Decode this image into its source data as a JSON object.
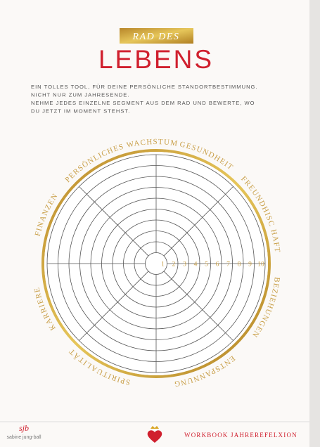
{
  "header": {
    "badge": "RAD DES",
    "title": "LEBENS"
  },
  "intro": [
    "EIN TOLLES TOOL, FÜR DEINE PERSÖNLICHE STANDORTBESTIMMUNG.",
    "NICHT NUR ZUM JAHRESENDE.",
    "NEHME JEDES EINZELNE SEGMENT AUS DEM RAD UND BEWERTE, WO",
    "DU JETZT IM MOMENT STEHST."
  ],
  "wheel": {
    "segments": [
      "PERSÖNLICHES WACHSTUM",
      "GESUNDHEIT",
      "FREUNDHISC HAFT",
      "BEZIEHUNGEN",
      "ENTSPANNUNG",
      "SPIRITUALITÄT",
      "KARRIERE",
      "FINANZEN"
    ],
    "scale": [
      1,
      2,
      3,
      4,
      5,
      6,
      7,
      8,
      9,
      10
    ]
  },
  "footer": {
    "monogram": "sjb",
    "logo": "sabine jung-ball",
    "text": "WORKBOOK JAHREREFELXION"
  }
}
